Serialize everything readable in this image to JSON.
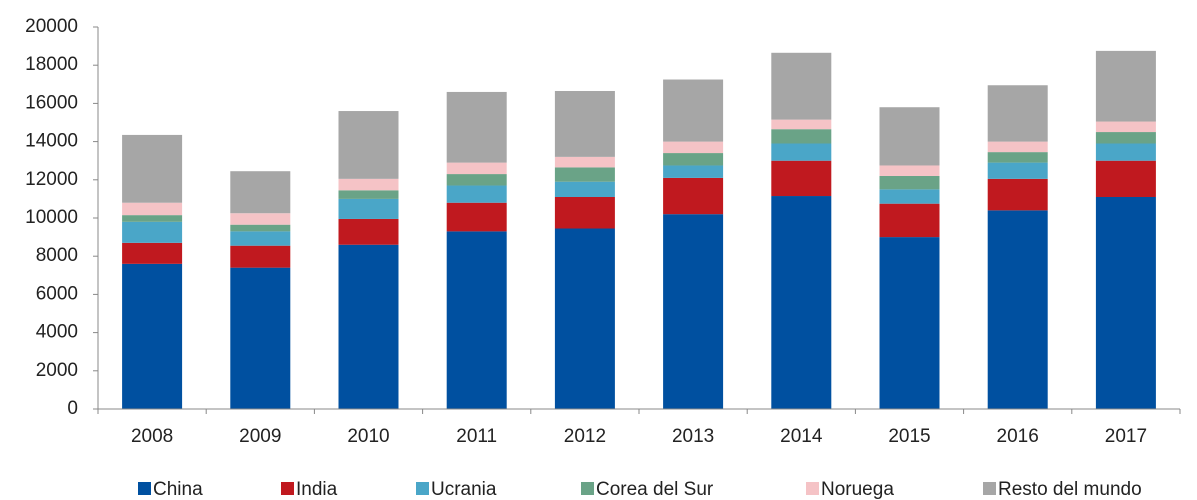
{
  "chart_data": {
    "type": "stacked_bar",
    "categories": [
      "2008",
      "2009",
      "2010",
      "2011",
      "2012",
      "2013",
      "2014",
      "2015",
      "2016",
      "2017"
    ],
    "series": [
      {
        "name": "China",
        "color": "#0050a0",
        "values": [
          7600,
          7400,
          8600,
          9300,
          9450,
          10200,
          11150,
          9000,
          10400,
          11100
        ]
      },
      {
        "name": "India",
        "color": "#c0191f",
        "values": [
          1100,
          1150,
          1350,
          1500,
          1650,
          1900,
          1850,
          1750,
          1650,
          1900
        ]
      },
      {
        "name": "Ucrania",
        "color": "#4aa6c8",
        "values": [
          1100,
          750,
          1050,
          900,
          800,
          650,
          900,
          750,
          850,
          900
        ]
      },
      {
        "name": "Corea del Sur",
        "color": "#6aa387",
        "values": [
          350,
          350,
          450,
          600,
          750,
          650,
          750,
          700,
          550,
          600
        ]
      },
      {
        "name": "Noruega",
        "color": "#f5c3c6",
        "values": [
          650,
          600,
          600,
          600,
          550,
          600,
          500,
          550,
          550,
          550
        ]
      },
      {
        "name": "Resto del mundo",
        "color": "#a6a6a6",
        "values": [
          3550,
          2200,
          3550,
          3700,
          3450,
          3250,
          3500,
          3050,
          2950,
          3700
        ]
      }
    ],
    "ylim": [
      0,
      20000
    ],
    "yticks": [
      0,
      2000,
      4000,
      6000,
      8000,
      10000,
      12000,
      14000,
      16000,
      18000,
      20000
    ],
    "legend": "bottom"
  }
}
